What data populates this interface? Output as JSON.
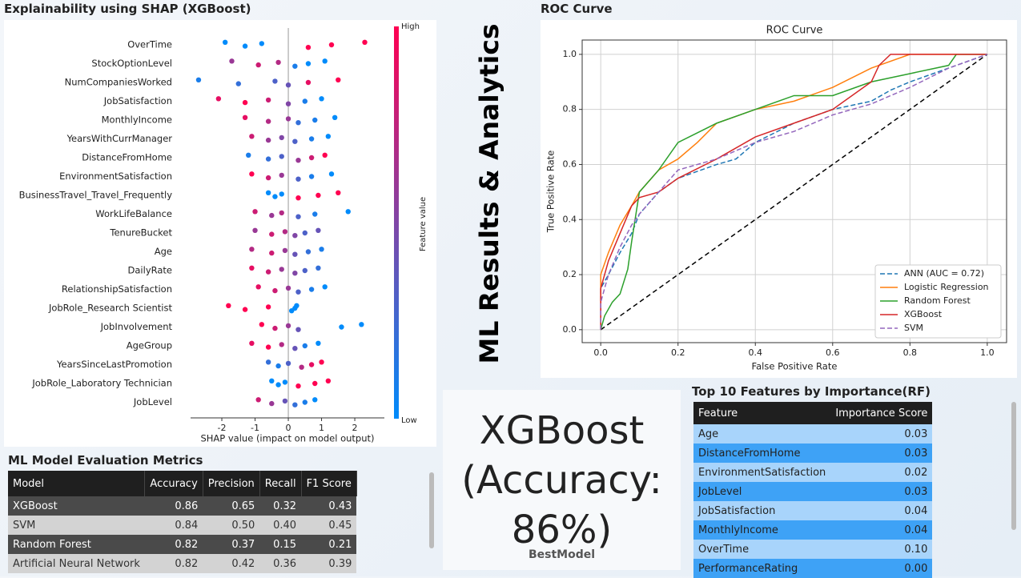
{
  "page_title": "ML Results & Analytics",
  "chart_data": [
    {
      "type": "beeswarm",
      "title": "Explainability using SHAP (XGBoost)",
      "x_label": "SHAP value (impact on model output)",
      "xlim": [
        -2.94,
        2.89
      ],
      "xticks": [
        -2,
        -1,
        0,
        1,
        2
      ],
      "colorbar": {
        "label": "Feature value",
        "high": "High",
        "low": "Low",
        "colors": [
          "#008bfb",
          "#ff0051"
        ]
      },
      "series": [
        {
          "name": "OverTime",
          "values": [
            -1.9,
            -1.3,
            -0.8,
            0.6,
            1.3,
            2.3
          ],
          "feature_values": [
            0,
            0,
            0,
            1,
            1,
            1
          ]
        },
        {
          "name": "StockOptionLevel",
          "values": [
            -1.7,
            -0.9,
            -0.3,
            0.2,
            0.6,
            1.1
          ],
          "feature_values": [
            0.6,
            0.8,
            0.7,
            0.1,
            0,
            0
          ]
        },
        {
          "name": "NumCompaniesWorked",
          "values": [
            -2.7,
            -1.5,
            -0.4,
            0.0,
            0.6,
            1.5
          ],
          "feature_values": [
            0.1,
            0.2,
            0.3,
            0.4,
            0.9,
            1
          ]
        },
        {
          "name": "JobSatisfaction",
          "values": [
            -2.1,
            -1.3,
            -0.6,
            0.0,
            0.5,
            1.0
          ],
          "feature_values": [
            0.9,
            1,
            0.8,
            0.5,
            0.1,
            0
          ]
        },
        {
          "name": "MonthlyIncome",
          "values": [
            -1.3,
            -0.6,
            0.0,
            0.3,
            0.8,
            1.4
          ],
          "feature_values": [
            0.9,
            0.7,
            0.6,
            0.2,
            0.1,
            0
          ]
        },
        {
          "name": "YearsWithCurrManager",
          "values": [
            -1.1,
            -0.6,
            -0.2,
            0.2,
            0.7,
            1.2
          ],
          "feature_values": [
            0.8,
            0.6,
            0.5,
            0.3,
            0.1,
            0
          ]
        },
        {
          "name": "DistanceFromHome",
          "values": [
            -1.2,
            -0.6,
            -0.2,
            0.3,
            0.7,
            1.1
          ],
          "feature_values": [
            0.1,
            0.2,
            0.3,
            0.6,
            0.8,
            1
          ]
        },
        {
          "name": "EnvironmentSatisfaction",
          "values": [
            -1.1,
            -0.6,
            -0.2,
            0.3,
            0.7,
            1.3
          ],
          "feature_values": [
            1,
            0.8,
            0.6,
            0.3,
            0.1,
            0
          ]
        },
        {
          "name": "BusinessTravel_Travel_Frequently",
          "values": [
            -0.6,
            -0.4,
            -0.2,
            0.3,
            0.9,
            1.5
          ],
          "feature_values": [
            0,
            0,
            0,
            1,
            1,
            1
          ]
        },
        {
          "name": "WorkLifeBalance",
          "values": [
            -1.0,
            -0.5,
            -0.2,
            0.3,
            0.8,
            1.8
          ],
          "feature_values": [
            0.8,
            0.6,
            0.7,
            0.3,
            0.1,
            0
          ]
        },
        {
          "name": "TenureBucket",
          "values": [
            -1.0,
            -0.5,
            -0.1,
            0.2,
            0.5,
            0.9
          ],
          "feature_values": [
            0.6,
            0.8,
            0.7,
            0.5,
            0.3,
            0.4
          ]
        },
        {
          "name": "Age",
          "values": [
            -1.1,
            -0.5,
            -0.1,
            0.2,
            0.6,
            1.0
          ],
          "feature_values": [
            0.7,
            0.8,
            0.6,
            0.4,
            0.2,
            0.1
          ]
        },
        {
          "name": "DailyRate",
          "values": [
            -1.1,
            -0.6,
            -0.2,
            0.2,
            0.5,
            0.9
          ],
          "feature_values": [
            0.9,
            0.8,
            0.6,
            0.5,
            0.3,
            0.2
          ]
        },
        {
          "name": "RelationshipSatisfaction",
          "values": [
            -0.9,
            -0.4,
            0.0,
            0.3,
            0.7,
            1.1
          ],
          "feature_values": [
            0.9,
            0.8,
            0.6,
            0.3,
            0.1,
            0
          ]
        },
        {
          "name": "JobRole_Research Scientist",
          "values": [
            -1.8,
            -1.3,
            -0.6,
            0.1,
            0.2,
            0.25
          ],
          "feature_values": [
            1,
            1,
            1,
            0,
            0,
            0
          ]
        },
        {
          "name": "JobInvolvement",
          "values": [
            -0.8,
            -0.4,
            0.0,
            0.3,
            1.6,
            2.2
          ],
          "feature_values": [
            1,
            0.8,
            0.6,
            0.4,
            0,
            0
          ]
        },
        {
          "name": "AgeGroup",
          "values": [
            -1.1,
            -0.6,
            -0.2,
            0.2,
            0.5,
            0.9
          ],
          "feature_values": [
            0.9,
            1,
            0.7,
            0.4,
            0.1,
            0
          ]
        },
        {
          "name": "YearsSinceLastPromotion",
          "values": [
            -0.6,
            -0.3,
            0.0,
            0.4,
            0.7,
            1.0
          ],
          "feature_values": [
            0.2,
            0.1,
            0.3,
            0.7,
            0.9,
            1
          ]
        },
        {
          "name": "JobRole_Laboratory Technician",
          "values": [
            -0.5,
            -0.3,
            -0.1,
            0.3,
            0.8,
            1.2
          ],
          "feature_values": [
            0,
            0,
            0,
            1,
            1,
            1
          ]
        },
        {
          "name": "JobLevel",
          "values": [
            -0.9,
            -0.5,
            -0.1,
            0.2,
            0.5,
            0.8
          ],
          "feature_values": [
            0.8,
            0.6,
            0.4,
            0.2,
            0.1,
            0
          ]
        }
      ]
    },
    {
      "type": "line",
      "section_title": "ROC Curve",
      "title": "ROC Curve",
      "x_label": "False Positive Rate",
      "y_label": "True Positive Rate",
      "xlim": [
        -0.048,
        1.05
      ],
      "ylim": [
        -0.047,
        1.052
      ],
      "xticks": [
        {
          "value": 0,
          "label": "0.0"
        },
        0.2,
        0.4,
        0.6,
        0.8,
        {
          "value": 1,
          "label": "1.0"
        }
      ],
      "yticks": [
        {
          "value": 0,
          "label": "0.0"
        },
        0.2,
        0.4,
        0.6,
        0.8,
        {
          "value": 1,
          "label": "1.0"
        }
      ],
      "grid": true,
      "legend": "lower right",
      "diagonal": {
        "x": [
          0,
          1
        ],
        "values": [
          0,
          1
        ],
        "color": "#000000"
      },
      "series": [
        {
          "name": "ANN (AUC = 0.72)",
          "color": "#1f77b4",
          "dashed": true,
          "x": [
            0,
            0,
            0.02,
            0.05,
            0.08,
            0.1,
            0.15,
            0.2,
            0.3,
            0.35,
            0.4,
            0.5,
            0.6,
            0.7,
            0.75,
            0.8,
            0.9,
            1
          ],
          "values": [
            0,
            0.15,
            0.2,
            0.28,
            0.35,
            0.42,
            0.5,
            0.55,
            0.6,
            0.62,
            0.68,
            0.75,
            0.8,
            0.83,
            0.87,
            0.9,
            0.95,
            1
          ]
        },
        {
          "name": "Logistic Regression",
          "color": "#ff7f0e",
          "dashed": false,
          "x": [
            0,
            0,
            0.02,
            0.05,
            0.08,
            0.1,
            0.15,
            0.2,
            0.25,
            0.3,
            0.4,
            0.5,
            0.6,
            0.7,
            0.8,
            1
          ],
          "values": [
            0,
            0.2,
            0.28,
            0.38,
            0.45,
            0.5,
            0.58,
            0.62,
            0.68,
            0.75,
            0.8,
            0.83,
            0.88,
            0.95,
            1,
            1
          ]
        },
        {
          "name": "Random Forest",
          "color": "#2ca02c",
          "dashed": false,
          "x": [
            0,
            0.01,
            0.03,
            0.05,
            0.07,
            0.08,
            0.1,
            0.15,
            0.2,
            0.3,
            0.4,
            0.5,
            0.6,
            0.7,
            0.8,
            0.9,
            0.92,
            1
          ],
          "values": [
            0,
            0.05,
            0.1,
            0.13,
            0.22,
            0.32,
            0.5,
            0.58,
            0.68,
            0.75,
            0.8,
            0.85,
            0.85,
            0.9,
            0.93,
            0.96,
            1,
            1
          ]
        },
        {
          "name": "XGBoost",
          "color": "#d62728",
          "dashed": false,
          "x": [
            0,
            0,
            0.02,
            0.05,
            0.08,
            0.1,
            0.15,
            0.2,
            0.3,
            0.4,
            0.5,
            0.6,
            0.7,
            0.72,
            0.75,
            1
          ],
          "values": [
            0,
            0.15,
            0.25,
            0.35,
            0.45,
            0.48,
            0.5,
            0.55,
            0.62,
            0.7,
            0.75,
            0.8,
            0.9,
            0.96,
            1,
            1
          ]
        },
        {
          "name": "SVM",
          "color": "#9467bd",
          "dashed": true,
          "x": [
            0,
            0,
            0.02,
            0.05,
            0.08,
            0.1,
            0.15,
            0.2,
            0.3,
            0.4,
            0.5,
            0.6,
            0.7,
            0.8,
            0.9,
            1
          ],
          "values": [
            0,
            0.1,
            0.2,
            0.3,
            0.38,
            0.42,
            0.5,
            0.58,
            0.62,
            0.68,
            0.72,
            0.78,
            0.82,
            0.88,
            0.95,
            1
          ]
        }
      ]
    }
  ],
  "metrics_table": {
    "title": "ML Model Evaluation Metrics",
    "columns": [
      "Model",
      "Accuracy",
      "Precision",
      "Recall",
      "F1 Score"
    ],
    "rows": [
      [
        "XGBoost",
        "0.86",
        "0.65",
        "0.32",
        "0.43"
      ],
      [
        "SVM",
        "0.84",
        "0.50",
        "0.40",
        "0.45"
      ],
      [
        "Random Forest",
        "0.82",
        "0.37",
        "0.15",
        "0.21"
      ],
      [
        "Artificial Neural Network",
        "0.82",
        "0.42",
        "0.36",
        "0.39"
      ]
    ]
  },
  "best_model_card": {
    "lines": [
      "XGBoost",
      "(Accuracy:",
      "86%)"
    ],
    "label": "BestModel"
  },
  "feature_table": {
    "title": "Top 10 Features by Importance(RF)",
    "columns": [
      "Feature",
      "Importance Score"
    ],
    "rows": [
      [
        "Age",
        "0.03"
      ],
      [
        "DistanceFromHome",
        "0.03"
      ],
      [
        "EnvironmentSatisfaction",
        "0.02"
      ],
      [
        "JobLevel",
        "0.03"
      ],
      [
        "JobSatisfaction",
        "0.04"
      ],
      [
        "MonthlyIncome",
        "0.04"
      ],
      [
        "OverTime",
        "0.10"
      ],
      [
        "PerformanceRating",
        "0.00"
      ]
    ]
  }
}
